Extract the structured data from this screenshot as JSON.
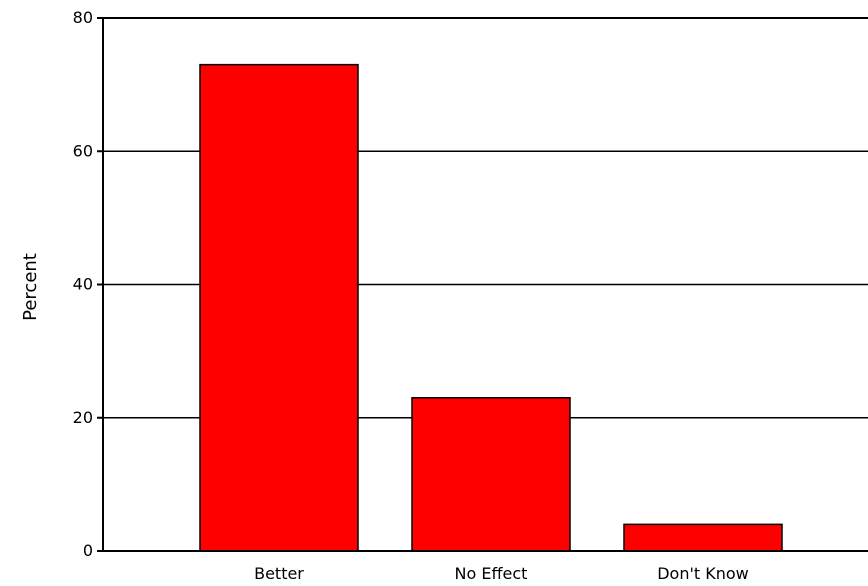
{
  "chart_data": {
    "type": "bar",
    "title": "",
    "xlabel": "",
    "ylabel": "Percent",
    "categories": [
      "Better",
      "No Effect",
      "Don't Know"
    ],
    "values": [
      73,
      23,
      4
    ],
    "ylim": [
      0,
      80
    ],
    "yticks": [
      0,
      20,
      40,
      60,
      80
    ],
    "grid": true,
    "bar_color": "#ff0000",
    "bar_edge_color": "#000000"
  }
}
